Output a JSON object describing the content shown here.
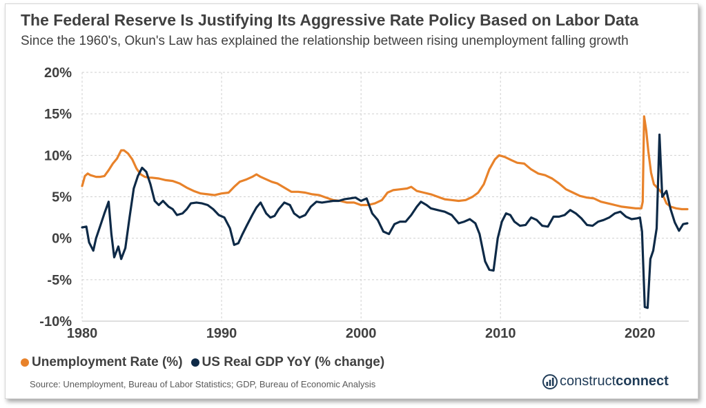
{
  "header": {
    "title": "The Federal Reserve Is Justifying Its Aggressive Rate Policy Based on Labor Data",
    "subtitle": "Since the 1960's, Okun's Law has explained the relationship between rising unemployment falling growth"
  },
  "footer": {
    "source": "Source: Unemployment, Bureau of Labor Statistics; GDP, Bureau of Economic Analysis",
    "logo_part1": "construct",
    "logo_part2": "connect",
    "logo_icon": "bar-chart-logo-icon"
  },
  "colors": {
    "unemployment": "#E8822A",
    "gdp": "#0E2A47",
    "grid": "#cfcfcf",
    "text": "#404040"
  },
  "chart_data": {
    "type": "line",
    "title": "The Federal Reserve Is Justifying Its Aggressive Rate Policy Based on Labor Data",
    "subtitle": "Since the 1960's, Okun's Law has explained the relationship between rising unemployment falling growth",
    "xlabel": "",
    "ylabel": "",
    "xlim": [
      1980,
      2023.5
    ],
    "ylim": [
      -10,
      20
    ],
    "x_ticks": [
      "1980",
      "1990",
      "2000",
      "2010",
      "2020"
    ],
    "y_ticks": [
      "-10%",
      "-5%",
      "0%",
      "5%",
      "10%",
      "15%",
      "20%"
    ],
    "grid": true,
    "legend_position": "bottom-left",
    "series": [
      {
        "name": "Unemployment Rate (%)",
        "color": "#E8822A",
        "points": [
          [
            1980.0,
            6.3
          ],
          [
            1980.2,
            7.5
          ],
          [
            1980.4,
            7.8
          ],
          [
            1980.6,
            7.6
          ],
          [
            1980.8,
            7.5
          ],
          [
            1981.0,
            7.4
          ],
          [
            1981.3,
            7.4
          ],
          [
            1981.6,
            7.5
          ],
          [
            1981.9,
            8.2
          ],
          [
            1982.2,
            9.0
          ],
          [
            1982.5,
            9.6
          ],
          [
            1982.8,
            10.6
          ],
          [
            1983.0,
            10.6
          ],
          [
            1983.3,
            10.2
          ],
          [
            1983.6,
            9.5
          ],
          [
            1983.9,
            8.4
          ],
          [
            1984.2,
            7.7
          ],
          [
            1984.5,
            7.4
          ],
          [
            1984.8,
            7.3
          ],
          [
            1985.0,
            7.3
          ],
          [
            1985.5,
            7.2
          ],
          [
            1986.0,
            7.0
          ],
          [
            1986.5,
            6.9
          ],
          [
            1987.0,
            6.6
          ],
          [
            1987.5,
            6.1
          ],
          [
            1988.0,
            5.7
          ],
          [
            1988.5,
            5.4
          ],
          [
            1989.0,
            5.3
          ],
          [
            1989.5,
            5.2
          ],
          [
            1990.0,
            5.4
          ],
          [
            1990.5,
            5.5
          ],
          [
            1990.9,
            6.2
          ],
          [
            1991.3,
            6.8
          ],
          [
            1991.8,
            7.1
          ],
          [
            1992.2,
            7.4
          ],
          [
            1992.5,
            7.7
          ],
          [
            1992.8,
            7.4
          ],
          [
            1993.2,
            7.1
          ],
          [
            1993.6,
            6.8
          ],
          [
            1994.0,
            6.6
          ],
          [
            1994.5,
            6.1
          ],
          [
            1995.0,
            5.6
          ],
          [
            1995.5,
            5.6
          ],
          [
            1996.0,
            5.5
          ],
          [
            1996.5,
            5.3
          ],
          [
            1997.0,
            5.2
          ],
          [
            1997.5,
            4.9
          ],
          [
            1998.0,
            4.6
          ],
          [
            1998.5,
            4.5
          ],
          [
            1999.0,
            4.3
          ],
          [
            1999.5,
            4.3
          ],
          [
            2000.0,
            4.0
          ],
          [
            2000.5,
            4.0
          ],
          [
            2001.0,
            4.2
          ],
          [
            2001.5,
            4.6
          ],
          [
            2001.9,
            5.5
          ],
          [
            2002.3,
            5.8
          ],
          [
            2002.8,
            5.9
          ],
          [
            2003.3,
            6.0
          ],
          [
            2003.6,
            6.2
          ],
          [
            2004.0,
            5.7
          ],
          [
            2004.5,
            5.5
          ],
          [
            2005.0,
            5.3
          ],
          [
            2005.5,
            5.0
          ],
          [
            2006.0,
            4.7
          ],
          [
            2006.5,
            4.6
          ],
          [
            2007.0,
            4.5
          ],
          [
            2007.5,
            4.6
          ],
          [
            2008.0,
            5.0
          ],
          [
            2008.4,
            5.5
          ],
          [
            2008.8,
            6.5
          ],
          [
            2009.2,
            8.3
          ],
          [
            2009.6,
            9.5
          ],
          [
            2009.9,
            10.0
          ],
          [
            2010.3,
            9.8
          ],
          [
            2010.8,
            9.4
          ],
          [
            2011.2,
            9.1
          ],
          [
            2011.7,
            9.0
          ],
          [
            2012.2,
            8.3
          ],
          [
            2012.7,
            7.8
          ],
          [
            2013.2,
            7.6
          ],
          [
            2013.7,
            7.2
          ],
          [
            2014.2,
            6.6
          ],
          [
            2014.7,
            5.9
          ],
          [
            2015.2,
            5.5
          ],
          [
            2015.7,
            5.1
          ],
          [
            2016.2,
            4.9
          ],
          [
            2016.7,
            4.8
          ],
          [
            2017.2,
            4.4
          ],
          [
            2017.7,
            4.2
          ],
          [
            2018.2,
            4.0
          ],
          [
            2018.7,
            3.8
          ],
          [
            2019.2,
            3.7
          ],
          [
            2019.7,
            3.6
          ],
          [
            2020.1,
            3.6
          ],
          [
            2020.2,
            4.4
          ],
          [
            2020.3,
            14.7
          ],
          [
            2020.45,
            13.0
          ],
          [
            2020.6,
            10.5
          ],
          [
            2020.8,
            7.9
          ],
          [
            2021.0,
            6.5
          ],
          [
            2021.3,
            6.0
          ],
          [
            2021.6,
            5.4
          ],
          [
            2021.9,
            4.2
          ],
          [
            2022.2,
            3.8
          ],
          [
            2022.6,
            3.6
          ],
          [
            2023.0,
            3.5
          ],
          [
            2023.4,
            3.5
          ]
        ]
      },
      {
        "name": "US Real GDP YoY (% change)",
        "color": "#0E2A47",
        "points": [
          [
            1980.0,
            1.3
          ],
          [
            1980.3,
            1.4
          ],
          [
            1980.5,
            -0.5
          ],
          [
            1980.8,
            -1.5
          ],
          [
            1981.0,
            0.0
          ],
          [
            1981.3,
            1.5
          ],
          [
            1981.6,
            3.0
          ],
          [
            1981.9,
            4.4
          ],
          [
            1982.1,
            0.5
          ],
          [
            1982.3,
            -2.3
          ],
          [
            1982.6,
            -1.0
          ],
          [
            1982.8,
            -2.5
          ],
          [
            1983.1,
            -1.2
          ],
          [
            1983.4,
            2.5
          ],
          [
            1983.7,
            6.0
          ],
          [
            1984.0,
            7.5
          ],
          [
            1984.3,
            8.5
          ],
          [
            1984.6,
            8.0
          ],
          [
            1984.9,
            6.5
          ],
          [
            1985.2,
            4.5
          ],
          [
            1985.5,
            4.0
          ],
          [
            1985.8,
            4.5
          ],
          [
            1986.2,
            3.8
          ],
          [
            1986.5,
            3.5
          ],
          [
            1986.8,
            2.8
          ],
          [
            1987.2,
            3.0
          ],
          [
            1987.5,
            3.5
          ],
          [
            1987.8,
            4.2
          ],
          [
            1988.2,
            4.3
          ],
          [
            1988.6,
            4.2
          ],
          [
            1989.0,
            4.0
          ],
          [
            1989.4,
            3.5
          ],
          [
            1989.8,
            2.8
          ],
          [
            1990.2,
            2.5
          ],
          [
            1990.6,
            1.2
          ],
          [
            1990.9,
            -0.8
          ],
          [
            1991.2,
            -0.6
          ],
          [
            1991.5,
            0.5
          ],
          [
            1991.8,
            1.5
          ],
          [
            1992.2,
            2.8
          ],
          [
            1992.5,
            3.7
          ],
          [
            1992.8,
            4.3
          ],
          [
            1993.2,
            3.0
          ],
          [
            1993.5,
            2.5
          ],
          [
            1993.8,
            2.7
          ],
          [
            1994.1,
            3.5
          ],
          [
            1994.5,
            4.3
          ],
          [
            1994.9,
            4.0
          ],
          [
            1995.2,
            3.0
          ],
          [
            1995.6,
            2.5
          ],
          [
            1996.0,
            2.8
          ],
          [
            1996.4,
            3.8
          ],
          [
            1996.8,
            4.4
          ],
          [
            1997.2,
            4.3
          ],
          [
            1997.6,
            4.4
          ],
          [
            1998.0,
            4.5
          ],
          [
            1998.4,
            4.5
          ],
          [
            1998.8,
            4.7
          ],
          [
            1999.2,
            4.8
          ],
          [
            1999.6,
            4.9
          ],
          [
            2000.0,
            4.5
          ],
          [
            2000.4,
            4.8
          ],
          [
            2000.8,
            3.0
          ],
          [
            2001.2,
            2.2
          ],
          [
            2001.6,
            0.8
          ],
          [
            2002.0,
            0.5
          ],
          [
            2002.4,
            1.7
          ],
          [
            2002.8,
            2.0
          ],
          [
            2003.2,
            2.0
          ],
          [
            2003.6,
            2.8
          ],
          [
            2004.0,
            3.8
          ],
          [
            2004.3,
            4.4
          ],
          [
            2004.7,
            4.0
          ],
          [
            2005.0,
            3.6
          ],
          [
            2005.5,
            3.4
          ],
          [
            2006.0,
            3.2
          ],
          [
            2006.5,
            2.8
          ],
          [
            2007.0,
            1.8
          ],
          [
            2007.4,
            2.0
          ],
          [
            2007.8,
            2.3
          ],
          [
            2008.2,
            1.8
          ],
          [
            2008.5,
            0.5
          ],
          [
            2008.9,
            -2.8
          ],
          [
            2009.2,
            -3.8
          ],
          [
            2009.5,
            -3.9
          ],
          [
            2009.8,
            0.0
          ],
          [
            2010.1,
            2.0
          ],
          [
            2010.4,
            3.0
          ],
          [
            2010.7,
            2.8
          ],
          [
            2011.0,
            2.0
          ],
          [
            2011.4,
            1.5
          ],
          [
            2011.8,
            1.6
          ],
          [
            2012.2,
            2.5
          ],
          [
            2012.6,
            2.2
          ],
          [
            2013.0,
            1.5
          ],
          [
            2013.4,
            1.4
          ],
          [
            2013.8,
            2.6
          ],
          [
            2014.2,
            2.6
          ],
          [
            2014.6,
            2.8
          ],
          [
            2015.0,
            3.4
          ],
          [
            2015.4,
            3.0
          ],
          [
            2015.8,
            2.4
          ],
          [
            2016.2,
            1.6
          ],
          [
            2016.6,
            1.5
          ],
          [
            2017.0,
            2.0
          ],
          [
            2017.4,
            2.2
          ],
          [
            2017.8,
            2.5
          ],
          [
            2018.2,
            3.0
          ],
          [
            2018.6,
            3.2
          ],
          [
            2019.0,
            2.6
          ],
          [
            2019.4,
            2.3
          ],
          [
            2019.8,
            2.4
          ],
          [
            2020.0,
            2.5
          ],
          [
            2020.15,
            0.8
          ],
          [
            2020.35,
            -8.3
          ],
          [
            2020.55,
            -8.4
          ],
          [
            2020.75,
            -2.5
          ],
          [
            2020.95,
            -1.5
          ],
          [
            2021.2,
            1.2
          ],
          [
            2021.4,
            12.5
          ],
          [
            2021.6,
            5.0
          ],
          [
            2021.9,
            5.7
          ],
          [
            2022.2,
            3.5
          ],
          [
            2022.5,
            1.9
          ],
          [
            2022.8,
            0.9
          ],
          [
            2023.1,
            1.7
          ],
          [
            2023.4,
            1.8
          ]
        ]
      }
    ]
  }
}
